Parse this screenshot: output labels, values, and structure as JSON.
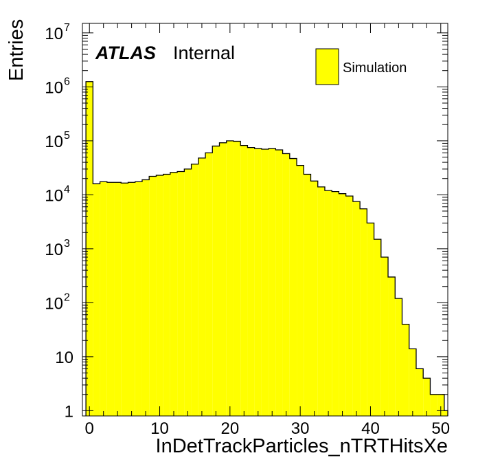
{
  "chart_data": {
    "type": "bar",
    "histogram": true,
    "yscale": "log",
    "title": "",
    "xlabel": "InDetTrackParticles_nTRTHitsXe",
    "ylabel": "Entries",
    "xlim": [
      -1,
      51
    ],
    "ylim": [
      0.8,
      15000000
    ],
    "bin_edges_start": -0.5,
    "bin_width": 1,
    "x_ticks": [
      0,
      10,
      20,
      30,
      40,
      50
    ],
    "y_ticks": [
      {
        "value": 1,
        "base": "1",
        "exp": ""
      },
      {
        "value": 10,
        "base": "10",
        "exp": ""
      },
      {
        "value": 100,
        "base": "10",
        "exp": "2"
      },
      {
        "value": 1000,
        "base": "10",
        "exp": "3"
      },
      {
        "value": 10000,
        "base": "10",
        "exp": "4"
      },
      {
        "value": 100000,
        "base": "10",
        "exp": "5"
      },
      {
        "value": 1000000,
        "base": "10",
        "exp": "6"
      },
      {
        "value": 10000000,
        "base": "10",
        "exp": "7"
      }
    ],
    "series": [
      {
        "name": "Simulation",
        "color": "#ffff00",
        "edge_color": "#000000",
        "values": [
          1250000,
          16000,
          17500,
          17000,
          17000,
          16500,
          17000,
          17500,
          19000,
          22000,
          23000,
          24000,
          26000,
          27000,
          30000,
          37000,
          48000,
          60000,
          80000,
          92000,
          100000,
          98000,
          82000,
          75000,
          72000,
          70000,
          72000,
          68000,
          58000,
          47000,
          35000,
          24000,
          18000,
          14000,
          12000,
          11500,
          10500,
          9500,
          7500,
          5500,
          3000,
          1500,
          700,
          300,
          120,
          40,
          14,
          6,
          4,
          2,
          2,
          1
        ]
      }
    ],
    "legend": {
      "position": "top-right",
      "entries": [
        "Simulation"
      ]
    },
    "annotations": {
      "experiment": "ATLAS",
      "status": "Internal"
    }
  }
}
